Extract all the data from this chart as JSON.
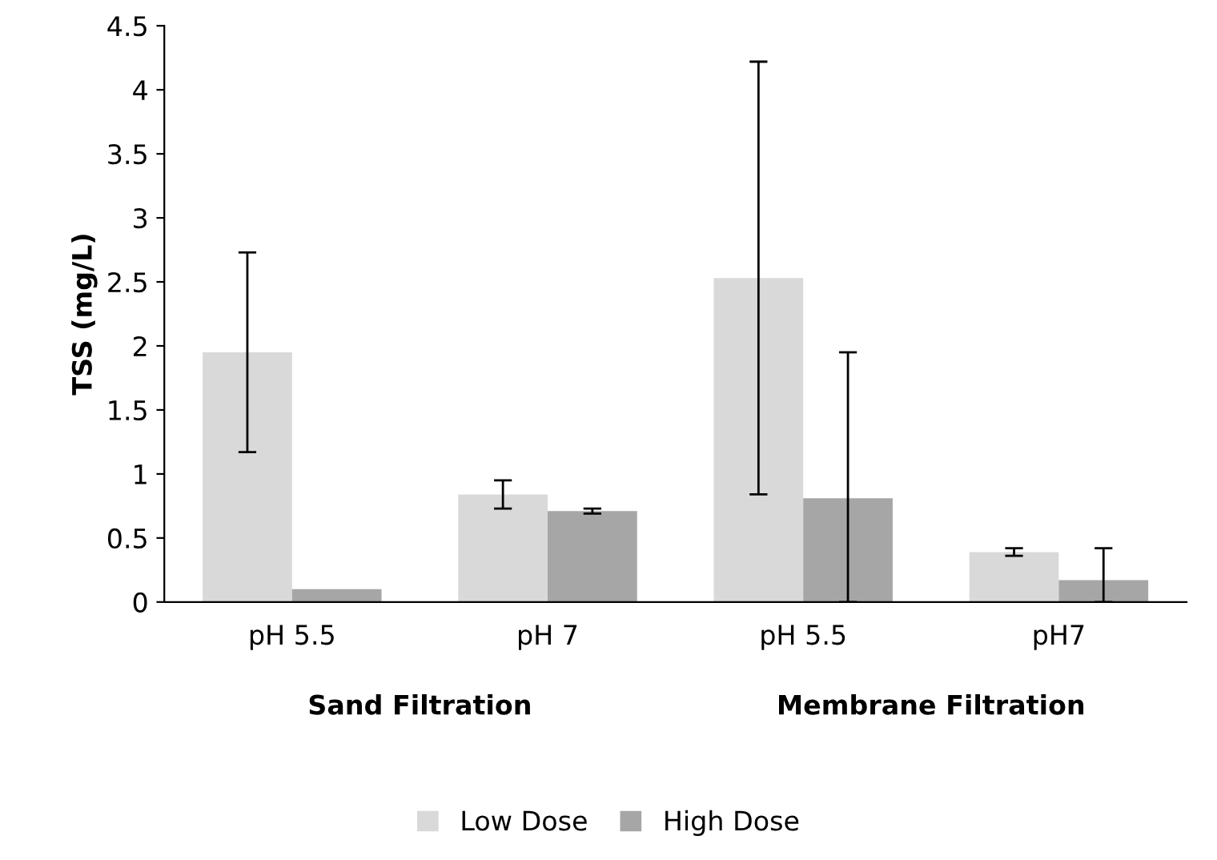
{
  "chart_data": {
    "type": "bar",
    "ylabel": "TSS (mg/L)",
    "categories": [
      "pH 5.5",
      "pH 7",
      "pH 5.5",
      "pH7"
    ],
    "series": [
      {
        "name": "Low Dose",
        "color": "#d9d9d9",
        "values": [
          1.95,
          0.84,
          2.53,
          0.39
        ],
        "errors": [
          0.78,
          0.11,
          1.69,
          0.03
        ]
      },
      {
        "name": "High Dose",
        "color": "#a6a6a6",
        "values": [
          0.1,
          0.71,
          0.81,
          0.17
        ],
        "errors": [
          null,
          0.02,
          [
            0,
            1.95
          ],
          [
            0,
            0.42
          ]
        ]
      }
    ],
    "annotations": [
      "Sand Filtration",
      "Membrane Filtration"
    ],
    "ylim": [
      0,
      4.5
    ],
    "yticks": [
      0,
      0.5,
      1,
      1.5,
      2,
      2.5,
      3,
      3.5,
      4,
      4.5
    ],
    "grid": false,
    "legend": "bottom"
  }
}
